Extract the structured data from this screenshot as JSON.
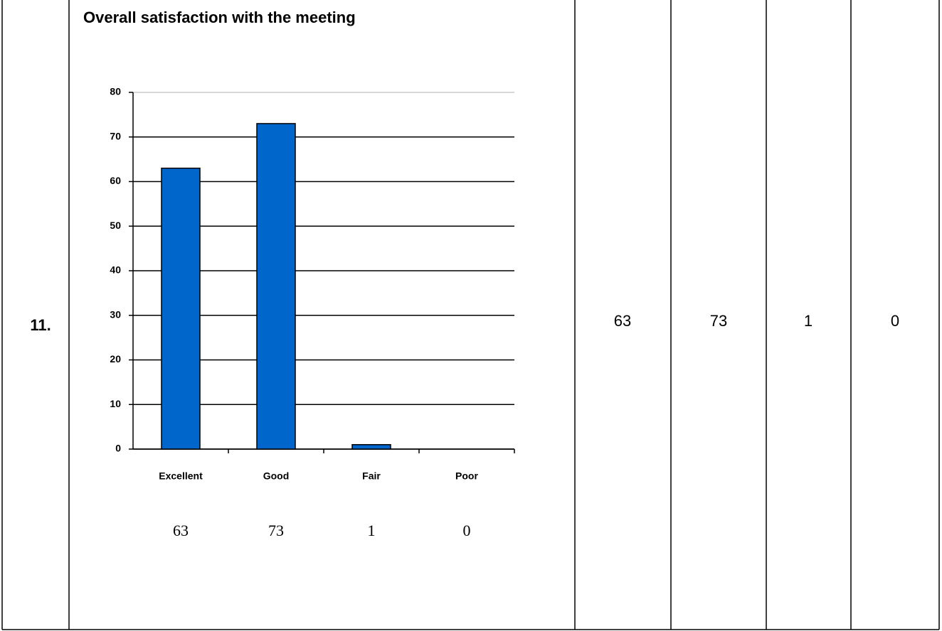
{
  "row": {
    "number": "11.",
    "cells": [
      "63",
      "73",
      "1",
      "0"
    ]
  },
  "chart_data": {
    "type": "bar",
    "title": "Overall satisfaction with the meeting",
    "categories": [
      "Excellent",
      "Good",
      "Fair",
      "Poor"
    ],
    "values": [
      63,
      73,
      1,
      0
    ],
    "color": "#0066cc",
    "ylim": [
      0,
      80
    ],
    "yticks": [
      0,
      10,
      20,
      30,
      40,
      50,
      60,
      70,
      80
    ],
    "grid": true
  }
}
